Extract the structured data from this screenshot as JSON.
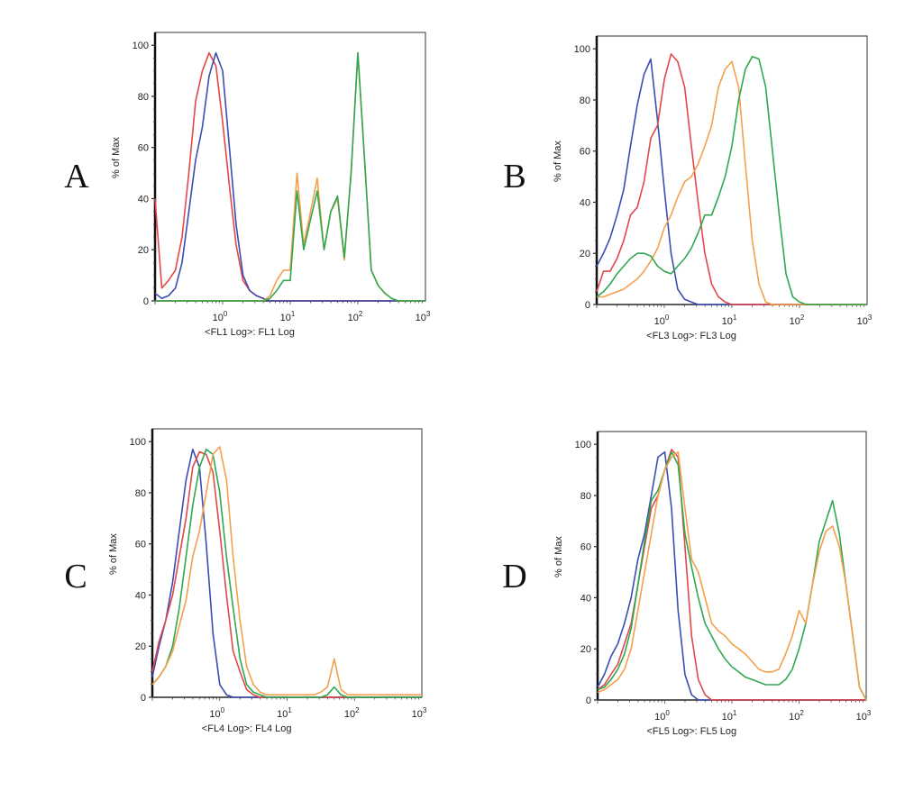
{
  "colors": {
    "blue": "#3b4db3",
    "red": "#e2474a",
    "orange": "#f4a04c",
    "green": "#2fa84f"
  },
  "chart_data": [
    {
      "type": "line",
      "panel_label": "A",
      "xlabel": "<FL1 Log>: FL1 Log",
      "ylabel": "% of Max",
      "xscale": "log",
      "xlim": [
        0.1,
        1000
      ],
      "ylim": [
        0,
        105
      ],
      "grid": false,
      "yticks": [
        "0",
        "20",
        "40",
        "60",
        "80",
        "100"
      ],
      "xticks": [
        {
          "base": "10",
          "exp": "0"
        },
        {
          "base": "10",
          "exp": "1"
        },
        {
          "base": "10",
          "exp": "2"
        },
        {
          "base": "10",
          "exp": "3"
        }
      ],
      "x": [
        0.1,
        0.126,
        0.158,
        0.2,
        0.251,
        0.316,
        0.398,
        0.501,
        0.631,
        0.794,
        1,
        1.26,
        1.58,
        2,
        2.51,
        3.16,
        3.98,
        5.01,
        6.31,
        7.94,
        10,
        12.6,
        15.8,
        20,
        25.1,
        31.6,
        39.8,
        50.1,
        63.1,
        79.4,
        100,
        126,
        158,
        200,
        251,
        316,
        398,
        501,
        631,
        794,
        1000
      ],
      "series": [
        {
          "color": "red",
          "values": [
            40,
            5,
            8,
            12,
            25,
            50,
            78,
            90,
            97,
            92,
            70,
            45,
            22,
            8,
            4,
            2,
            1,
            0,
            0,
            0,
            0,
            0,
            0,
            0,
            0,
            0,
            0,
            0,
            0,
            0,
            0,
            0,
            0,
            0,
            0,
            0,
            0,
            0,
            0,
            0,
            0
          ]
        },
        {
          "color": "blue",
          "values": [
            3,
            1,
            2,
            5,
            15,
            35,
            55,
            68,
            88,
            97,
            90,
            60,
            30,
            10,
            4,
            2,
            1,
            0,
            0,
            0,
            0,
            0,
            0,
            0,
            0,
            0,
            0,
            0,
            0,
            0,
            0,
            0,
            0,
            0,
            0,
            0,
            0,
            0,
            0,
            0,
            0
          ]
        },
        {
          "color": "orange",
          "values": [
            0,
            0,
            0,
            0,
            0,
            0,
            0,
            0,
            0,
            0,
            0,
            0,
            0,
            0,
            0,
            0,
            0,
            2,
            8,
            12,
            12,
            50,
            22,
            35,
            48,
            20,
            35,
            40,
            16,
            50,
            97,
            55,
            12,
            6,
            3,
            1,
            0,
            0,
            0,
            0,
            0
          ]
        },
        {
          "color": "green",
          "values": [
            0,
            0,
            0,
            0,
            0,
            0,
            0,
            0,
            0,
            0,
            0,
            0,
            0,
            0,
            0,
            0,
            0,
            1,
            4,
            8,
            8,
            43,
            20,
            32,
            43,
            20,
            35,
            41,
            17,
            50,
            97,
            55,
            12,
            6,
            3,
            1,
            0,
            0,
            0,
            0,
            0
          ]
        }
      ]
    },
    {
      "type": "line",
      "panel_label": "B",
      "xlabel": "<FL3 Log>: FL3 Log",
      "ylabel": "% of Max",
      "xscale": "log",
      "xlim": [
        0.1,
        1000
      ],
      "ylim": [
        0,
        105
      ],
      "grid": false,
      "yticks": [
        "0",
        "20",
        "40",
        "60",
        "80",
        "100"
      ],
      "xticks": [
        {
          "base": "10",
          "exp": "0"
        },
        {
          "base": "10",
          "exp": "1"
        },
        {
          "base": "10",
          "exp": "2"
        },
        {
          "base": "10",
          "exp": "3"
        }
      ],
      "x": [
        0.1,
        0.126,
        0.158,
        0.2,
        0.251,
        0.316,
        0.398,
        0.501,
        0.631,
        0.794,
        1,
        1.26,
        1.58,
        2,
        2.51,
        3.16,
        3.98,
        5.01,
        6.31,
        7.94,
        10,
        12.6,
        15.8,
        20,
        25.1,
        31.6,
        39.8,
        50.1,
        63.1,
        79.4,
        100,
        126,
        158,
        200,
        251,
        316,
        398,
        501,
        631,
        794,
        1000
      ],
      "series": [
        {
          "color": "blue",
          "values": [
            15,
            20,
            26,
            35,
            45,
            62,
            78,
            90,
            96,
            72,
            45,
            20,
            6,
            2,
            1,
            0,
            0,
            0,
            0,
            0,
            0,
            0,
            0,
            0,
            0,
            0,
            0,
            0,
            0,
            0,
            0,
            0,
            0,
            0,
            0,
            0,
            0,
            0,
            0,
            0,
            0
          ]
        },
        {
          "color": "red",
          "values": [
            5,
            13,
            13,
            18,
            25,
            35,
            38,
            48,
            65,
            70,
            88,
            98,
            95,
            85,
            62,
            40,
            20,
            8,
            3,
            1,
            0,
            0,
            0,
            0,
            0,
            0,
            0,
            0,
            0,
            0,
            0,
            0,
            0,
            0,
            0,
            0,
            0,
            0,
            0,
            0,
            0
          ]
        },
        {
          "color": "orange",
          "values": [
            3,
            3,
            4,
            5,
            6,
            8,
            10,
            13,
            17,
            22,
            30,
            35,
            42,
            48,
            50,
            55,
            62,
            70,
            85,
            92,
            95,
            85,
            55,
            25,
            8,
            1,
            0,
            0,
            0,
            0,
            0,
            0,
            0,
            0,
            0,
            0,
            0,
            0,
            0,
            0,
            0
          ]
        },
        {
          "color": "green",
          "values": [
            3,
            5,
            8,
            12,
            15,
            18,
            20,
            20,
            19,
            15,
            13,
            12,
            15,
            18,
            22,
            28,
            35,
            35,
            42,
            50,
            62,
            80,
            92,
            97,
            96,
            85,
            60,
            35,
            12,
            3,
            1,
            0,
            0,
            0,
            0,
            0,
            0,
            0,
            0,
            0,
            0
          ]
        }
      ]
    },
    {
      "type": "line",
      "panel_label": "C",
      "xlabel": "<FL4 Log>: FL4 Log",
      "ylabel": "% of Max",
      "xscale": "log",
      "xlim": [
        0.1,
        1000
      ],
      "ylim": [
        0,
        105
      ],
      "grid": false,
      "yticks": [
        "0",
        "20",
        "40",
        "60",
        "80",
        "100"
      ],
      "xticks": [
        {
          "base": "10",
          "exp": "0"
        },
        {
          "base": "10",
          "exp": "1"
        },
        {
          "base": "10",
          "exp": "2"
        },
        {
          "base": "10",
          "exp": "3"
        }
      ],
      "x": [
        0.1,
        0.126,
        0.158,
        0.2,
        0.251,
        0.316,
        0.398,
        0.501,
        0.631,
        0.794,
        1,
        1.26,
        1.58,
        2,
        2.51,
        3.16,
        3.98,
        5.01,
        6.31,
        7.94,
        10,
        12.6,
        15.8,
        20,
        25.1,
        31.6,
        39.8,
        50.1,
        63.1,
        79.4,
        100,
        126,
        158,
        200,
        251,
        316,
        398,
        501,
        631,
        794,
        1000
      ],
      "series": [
        {
          "color": "blue",
          "values": [
            8,
            20,
            30,
            45,
            65,
            85,
            97,
            90,
            60,
            25,
            5,
            1,
            0,
            0,
            0,
            0,
            0,
            0,
            0,
            0,
            0,
            0,
            0,
            0,
            0,
            0,
            0,
            0,
            0,
            0,
            0,
            0,
            0,
            0,
            0,
            0,
            0,
            0,
            0,
            0,
            0
          ]
        },
        {
          "color": "red",
          "values": [
            10,
            22,
            30,
            40,
            55,
            70,
            90,
            96,
            95,
            88,
            65,
            40,
            18,
            10,
            3,
            1,
            0,
            0,
            0,
            0,
            0,
            0,
            0,
            0,
            0,
            0,
            0,
            0,
            0,
            0,
            0,
            0,
            0,
            0,
            0,
            0,
            0,
            0,
            0,
            0,
            0
          ]
        },
        {
          "color": "green",
          "values": [
            5,
            8,
            12,
            20,
            35,
            55,
            75,
            90,
            97,
            95,
            80,
            55,
            35,
            15,
            5,
            2,
            1,
            0,
            0,
            0,
            0,
            0,
            0,
            0,
            0,
            0,
            1,
            4,
            1,
            0,
            0,
            0,
            0,
            0,
            0,
            0,
            0,
            0,
            0,
            0,
            0
          ]
        },
        {
          "color": "orange",
          "values": [
            5,
            8,
            12,
            18,
            28,
            38,
            55,
            65,
            80,
            95,
            98,
            85,
            55,
            30,
            12,
            5,
            2,
            1,
            1,
            1,
            1,
            1,
            1,
            1,
            1,
            2,
            4,
            15,
            3,
            1,
            1,
            1,
            1,
            1,
            1,
            1,
            1,
            1,
            1,
            1,
            1
          ]
        }
      ]
    },
    {
      "type": "line",
      "panel_label": "D",
      "xlabel": "<FL5 Log>: FL5 Log",
      "ylabel": "% of Max",
      "xscale": "log",
      "xlim": [
        0.1,
        1000
      ],
      "ylim": [
        0,
        105
      ],
      "grid": false,
      "yticks": [
        "0",
        "20",
        "40",
        "60",
        "80",
        "100"
      ],
      "xticks": [
        {
          "base": "10",
          "exp": "0"
        },
        {
          "base": "10",
          "exp": "1"
        },
        {
          "base": "10",
          "exp": "2"
        },
        {
          "base": "10",
          "exp": "3"
        }
      ],
      "x": [
        0.1,
        0.126,
        0.158,
        0.2,
        0.251,
        0.316,
        0.398,
        0.501,
        0.631,
        0.794,
        1,
        1.26,
        1.58,
        2,
        2.51,
        3.16,
        3.98,
        5.01,
        6.31,
        7.94,
        10,
        12.6,
        15.8,
        20,
        25.1,
        31.6,
        39.8,
        50.1,
        63.1,
        79.4,
        100,
        126,
        158,
        200,
        251,
        316,
        398,
        501,
        631,
        794,
        1000
      ],
      "series": [
        {
          "color": "blue",
          "values": [
            5,
            10,
            17,
            22,
            30,
            40,
            55,
            65,
            80,
            95,
            97,
            75,
            35,
            10,
            2,
            0,
            0,
            0,
            0,
            0,
            0,
            0,
            0,
            0,
            0,
            0,
            0,
            0,
            0,
            0,
            0,
            0,
            0,
            0,
            0,
            0,
            0,
            0,
            0,
            0,
            0
          ]
        },
        {
          "color": "red",
          "values": [
            4,
            6,
            10,
            14,
            22,
            30,
            45,
            60,
            75,
            80,
            90,
            98,
            95,
            60,
            25,
            8,
            2,
            0,
            0,
            0,
            0,
            0,
            0,
            0,
            0,
            0,
            0,
            0,
            0,
            0,
            0,
            0,
            0,
            0,
            0,
            0,
            0,
            0,
            0,
            0,
            0
          ]
        },
        {
          "color": "green",
          "values": [
            4,
            5,
            8,
            12,
            18,
            28,
            45,
            62,
            78,
            82,
            90,
            97,
            92,
            65,
            52,
            40,
            30,
            25,
            20,
            16,
            13,
            11,
            9,
            8,
            7,
            6,
            6,
            6,
            8,
            12,
            20,
            30,
            45,
            62,
            70,
            78,
            65,
            45,
            25,
            5,
            0
          ]
        },
        {
          "color": "orange",
          "values": [
            3,
            4,
            6,
            8,
            12,
            20,
            35,
            50,
            65,
            80,
            90,
            95,
            97,
            75,
            55,
            50,
            40,
            30,
            27,
            25,
            22,
            20,
            18,
            15,
            12,
            11,
            11,
            12,
            18,
            25,
            35,
            30,
            45,
            58,
            66,
            68,
            60,
            45,
            25,
            5,
            0
          ]
        }
      ]
    }
  ]
}
